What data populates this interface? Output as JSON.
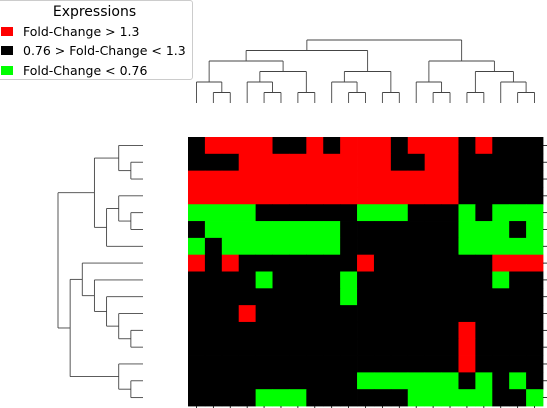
{
  "chart_data": {
    "type": "heatmap",
    "title": "",
    "xlabel": "",
    "ylabel": "",
    "legend": {
      "title": "Expressions",
      "placement": "top-left",
      "entries": [
        {
          "label": "Fold-Change > 1.3",
          "color": "#ff0000"
        },
        {
          "label": "0.76 > Fold-Change < 1.3",
          "color": "#000000"
        },
        {
          "label": "Fold-Change < 0.76",
          "color": "#00ff00"
        }
      ]
    },
    "n_rows": 16,
    "n_cols": 21,
    "value_codes": {
      "0": "#000000",
      "1": "#ff0000",
      "2": "#00ff00"
    },
    "matrix": [
      [
        0,
        1,
        1,
        1,
        1,
        0,
        0,
        1,
        0,
        1,
        1,
        1,
        0,
        1,
        1,
        1,
        0,
        1,
        0,
        0,
        0
      ],
      [
        0,
        0,
        0,
        1,
        1,
        1,
        1,
        1,
        1,
        1,
        1,
        1,
        0,
        0,
        1,
        1,
        0,
        0,
        0,
        0,
        0
      ],
      [
        1,
        1,
        1,
        1,
        1,
        1,
        1,
        1,
        1,
        1,
        1,
        1,
        1,
        1,
        1,
        1,
        0,
        0,
        0,
        0,
        0
      ],
      [
        1,
        1,
        1,
        1,
        1,
        1,
        1,
        1,
        1,
        1,
        1,
        1,
        1,
        1,
        1,
        1,
        0,
        0,
        0,
        0,
        0
      ],
      [
        2,
        2,
        2,
        2,
        0,
        0,
        0,
        0,
        0,
        0,
        2,
        2,
        2,
        0,
        0,
        0,
        2,
        0,
        2,
        2,
        2
      ],
      [
        0,
        2,
        2,
        2,
        2,
        2,
        2,
        2,
        2,
        0,
        0,
        0,
        0,
        0,
        0,
        0,
        2,
        2,
        2,
        0,
        2
      ],
      [
        2,
        0,
        2,
        2,
        2,
        2,
        2,
        2,
        2,
        0,
        0,
        0,
        0,
        0,
        0,
        0,
        2,
        2,
        2,
        2,
        2
      ],
      [
        1,
        0,
        1,
        0,
        0,
        0,
        0,
        0,
        0,
        0,
        1,
        0,
        0,
        0,
        0,
        0,
        0,
        0,
        1,
        1,
        1
      ],
      [
        0,
        0,
        0,
        0,
        2,
        0,
        0,
        0,
        0,
        2,
        0,
        0,
        0,
        0,
        0,
        0,
        0,
        0,
        2,
        0,
        0
      ],
      [
        0,
        0,
        0,
        0,
        0,
        0,
        0,
        0,
        0,
        2,
        0,
        0,
        0,
        0,
        0,
        0,
        0,
        0,
        0,
        0,
        0
      ],
      [
        0,
        0,
        0,
        1,
        0,
        0,
        0,
        0,
        0,
        0,
        0,
        0,
        0,
        0,
        0,
        0,
        0,
        0,
        0,
        0,
        0
      ],
      [
        0,
        0,
        0,
        0,
        0,
        0,
        0,
        0,
        0,
        0,
        0,
        0,
        0,
        0,
        0,
        0,
        1,
        0,
        0,
        0,
        0
      ],
      [
        0,
        0,
        0,
        0,
        0,
        0,
        0,
        0,
        0,
        0,
        0,
        0,
        0,
        0,
        0,
        0,
        1,
        0,
        0,
        0,
        0
      ],
      [
        0,
        0,
        0,
        0,
        0,
        0,
        0,
        0,
        0,
        0,
        0,
        0,
        0,
        0,
        0,
        0,
        1,
        0,
        0,
        0,
        0
      ],
      [
        0,
        0,
        0,
        0,
        0,
        0,
        0,
        0,
        0,
        0,
        2,
        2,
        2,
        2,
        2,
        2,
        0,
        2,
        0,
        2,
        0
      ],
      [
        0,
        0,
        0,
        0,
        2,
        2,
        2,
        0,
        0,
        0,
        0,
        0,
        0,
        2,
        2,
        2,
        2,
        2,
        0,
        0,
        2
      ]
    ],
    "grid": false
  }
}
